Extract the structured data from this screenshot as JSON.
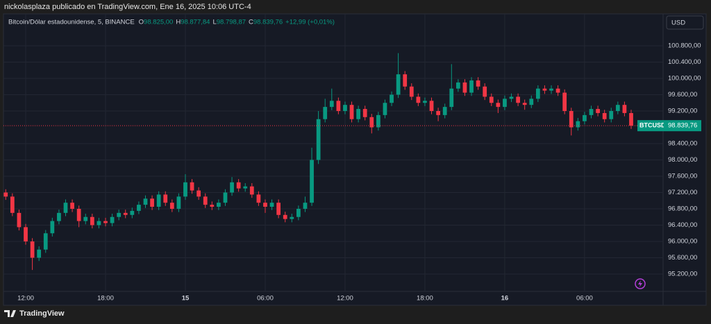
{
  "header": {
    "text": "nickolasplaza publicado en TradingView.com, Ene 16, 2025 10:06 UTC-4"
  },
  "chart_data": {
    "type": "candlestick",
    "symbol_line": "Bitcoin/Dólar estadounidense, 5, BINANCE",
    "ohlc_legend": [
      {
        "label": "O",
        "value": "98.825,00"
      },
      {
        "label": "H",
        "value": "98.877,84"
      },
      {
        "label": "L",
        "value": "98.798,87"
      },
      {
        "label": "C",
        "value": "98.839,76"
      }
    ],
    "change": "+12,99 (+0,01%)",
    "currency": "USD",
    "symbol": "BTCUSD",
    "last_price": {
      "value": 98839.76,
      "label": "98.839,76"
    },
    "up_color": "#089981",
    "down_color": "#f23645",
    "x": [
      -1.5,
      -1,
      -0.5,
      0,
      0.5,
      1,
      1.5,
      2,
      2.5,
      3,
      3.5,
      4,
      4.5,
      5,
      5.5,
      6,
      6.5,
      7,
      7.5,
      8,
      8.5,
      9,
      9.5,
      10,
      10.5,
      11,
      11.5,
      12,
      12.5,
      13,
      13.5,
      14,
      14.5,
      15,
      15.5,
      16,
      16.5,
      17,
      17.5,
      18,
      18.5,
      19,
      19.5,
      20,
      20.5,
      21,
      21.5,
      22,
      22.5,
      23,
      23.5,
      24,
      24.5,
      25,
      25.5,
      26,
      26.5,
      27,
      27.5,
      28,
      28.5,
      29,
      29.5,
      30,
      30.5,
      31,
      31.5,
      32,
      32.5,
      33,
      33.5,
      34,
      34.5,
      35,
      35.5,
      36,
      36.5,
      37,
      37.5,
      38,
      38.5,
      39,
      39.5,
      40,
      40.5,
      41,
      41.5,
      42,
      42.5,
      43,
      43.5,
      44,
      44.5,
      45,
      45.5
    ],
    "open": [
      97200,
      97100,
      96700,
      96350,
      96000,
      95600,
      95800,
      96200,
      96500,
      96700,
      96950,
      96800,
      96500,
      96600,
      96400,
      96500,
      96450,
      96600,
      96700,
      96650,
      96750,
      96900,
      97050,
      96850,
      97150,
      96950,
      96800,
      97100,
      97450,
      97250,
      97100,
      96900,
      96850,
      96950,
      97200,
      97450,
      97300,
      97350,
      97150,
      96950,
      96850,
      96950,
      96650,
      96550,
      96600,
      96800,
      96950,
      98000,
      99000,
      99300,
      99450,
      99200,
      99350,
      99000,
      99250,
      99050,
      98800,
      99100,
      99400,
      99600,
      100100,
      99800,
      99550,
      99400,
      99450,
      99200,
      99100,
      99300,
      99750,
      99900,
      99650,
      99950,
      99800,
      99550,
      99400,
      99300,
      99500,
      99550,
      99400,
      99350,
      99500,
      99750,
      99700,
      99750,
      99650,
      99200,
      98800,
      98950,
      99100,
      99250,
      99150,
      99000,
      99200,
      99350,
      99150
    ],
    "high": [
      97280,
      97180,
      96780,
      96430,
      96080,
      95880,
      96280,
      96580,
      96780,
      97030,
      97030,
      96880,
      96680,
      96680,
      96580,
      96580,
      96680,
      96780,
      96780,
      96830,
      96980,
      97130,
      97130,
      97230,
      97230,
      97030,
      97180,
      97650,
      97530,
      97330,
      97180,
      96980,
      97030,
      97280,
      97580,
      97530,
      97430,
      97430,
      97230,
      97030,
      97030,
      97030,
      96730,
      96680,
      96880,
      97100,
      98300,
      99200,
      99500,
      99750,
      99530,
      99430,
      99430,
      99330,
      99330,
      99130,
      99180,
      99480,
      99680,
      100620,
      100180,
      99880,
      99630,
      99530,
      99530,
      99280,
      99380,
      100350,
      99980,
      99980,
      100030,
      100030,
      99880,
      99630,
      99480,
      99580,
      99630,
      99630,
      99480,
      99580,
      99830,
      99830,
      99830,
      99830,
      99730,
      99280,
      99030,
      99180,
      99330,
      99330,
      99230,
      99280,
      99430,
      99430,
      99230
    ],
    "low": [
      97020,
      96620,
      96270,
      95920,
      95300,
      95520,
      95720,
      96120,
      96420,
      96620,
      96720,
      96350,
      96420,
      96320,
      96320,
      96370,
      96370,
      96520,
      96570,
      96570,
      96670,
      96820,
      96770,
      96770,
      96870,
      96720,
      96720,
      97020,
      97170,
      97020,
      96820,
      96770,
      96770,
      96870,
      97120,
      97220,
      97220,
      97070,
      96870,
      96700,
      96770,
      96570,
      96470,
      96470,
      96520,
      96720,
      96870,
      97900,
      98920,
      99220,
      99120,
      99120,
      98920,
      98920,
      98970,
      98650,
      98720,
      99020,
      99320,
      99520,
      99720,
      99470,
      99320,
      99320,
      99120,
      98950,
      99020,
      99220,
      99670,
      99570,
      99570,
      99720,
      99470,
      99320,
      99150,
      99220,
      99420,
      99320,
      99230,
      99270,
      99420,
      99620,
      99620,
      99570,
      99120,
      98600,
      98720,
      98870,
      99020,
      99070,
      98920,
      98920,
      99120,
      99070,
      98760
    ],
    "close": [
      97100,
      96700,
      96350,
      96000,
      95600,
      95800,
      96200,
      96500,
      96700,
      96950,
      96800,
      96500,
      96600,
      96400,
      96500,
      96450,
      96600,
      96700,
      96650,
      96750,
      96900,
      97050,
      96850,
      97150,
      96950,
      96800,
      97100,
      97450,
      97250,
      97100,
      96900,
      96850,
      96950,
      97200,
      97450,
      97300,
      97350,
      97150,
      96950,
      96850,
      96950,
      96650,
      96550,
      96600,
      96800,
      96950,
      98000,
      99000,
      99300,
      99450,
      99200,
      99350,
      99000,
      99250,
      99050,
      98800,
      99100,
      99400,
      99600,
      100100,
      99800,
      99550,
      99400,
      99450,
      99200,
      99100,
      99300,
      99750,
      99900,
      99650,
      99950,
      99800,
      99550,
      99400,
      99300,
      99500,
      99550,
      99400,
      99350,
      99500,
      99750,
      99700,
      99750,
      99650,
      99200,
      98800,
      98950,
      99100,
      99250,
      99150,
      99000,
      99200,
      99350,
      99150,
      98839.76
    ],
    "xlim": [
      -1.67,
      47.9
    ],
    "ylim": [
      94774,
      101583
    ],
    "xticks": [
      {
        "value": 0,
        "label": "12:00"
      },
      {
        "value": 6,
        "label": "18:00"
      },
      {
        "value": 12,
        "label": "15"
      },
      {
        "value": 18,
        "label": "06:00"
      },
      {
        "value": 24,
        "label": "12:00"
      },
      {
        "value": 30,
        "label": "18:00"
      },
      {
        "value": 36,
        "label": "16"
      },
      {
        "value": 42,
        "label": "06:00"
      }
    ],
    "yticks": [
      {
        "value": 95200,
        "label": "95.200,00"
      },
      {
        "value": 95600,
        "label": "95.600,00"
      },
      {
        "value": 96000,
        "label": "96.000,00"
      },
      {
        "value": 96400,
        "label": "96.400,00"
      },
      {
        "value": 96800,
        "label": "96.800,00"
      },
      {
        "value": 97200,
        "label": "97.200,00"
      },
      {
        "value": 97600,
        "label": "97.600,00"
      },
      {
        "value": 98000,
        "label": "98.000,00"
      },
      {
        "value": 98400,
        "label": "98.400,00"
      },
      {
        "value": 99200,
        "label": "99.200,00"
      },
      {
        "value": 99600,
        "label": "99.600,00"
      },
      {
        "value": 100000,
        "label": "100.000,00"
      },
      {
        "value": 100400,
        "label": "100.400,00"
      },
      {
        "value": 100800,
        "label": "100.800,00"
      }
    ],
    "grid": true
  },
  "footer": {
    "brand": "TradingView"
  }
}
